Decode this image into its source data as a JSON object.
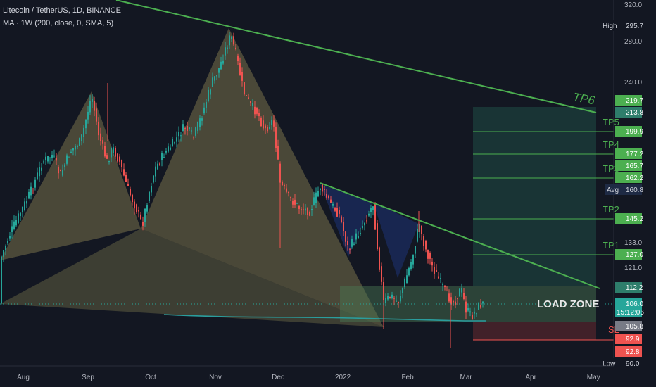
{
  "header": {
    "symbol_line": "Litecoin / TetherUS, 1D, BINANCE",
    "indicator_line": "MA · 1W (200, close, 0, SMA, 5)"
  },
  "colors": {
    "background": "#131722",
    "up": "#26a69a",
    "down": "#ef5350",
    "trendline": "#4caf50",
    "harmonic_fill": "#8d8654",
    "blue_pattern_fill": "#1e3a6e",
    "target_zone": "#1f4d46",
    "load_zone": "#3b5a46",
    "stop_zone": "#5a2a2e",
    "ma_line": "#2a9d9d"
  },
  "chart_data": {
    "type": "candlestick",
    "title": "Litecoin / TetherUS, 1D, BINANCE",
    "price_axis": {
      "ticks": [
        {
          "value": 320,
          "label": "320.0"
        },
        {
          "value": 280,
          "label": "280.0"
        },
        {
          "value": 240,
          "label": "240.0"
        },
        {
          "value": 133,
          "label": "133.0"
        },
        {
          "value": 121,
          "label": "121.0"
        }
      ]
    },
    "time_axis": {
      "labels": [
        {
          "label": "Aug",
          "date": "2021-08-01"
        },
        {
          "label": "Sep",
          "date": "2021-09-01"
        },
        {
          "label": "Oct",
          "date": "2021-10-01"
        },
        {
          "label": "Nov",
          "date": "2021-11-01"
        },
        {
          "label": "Dec",
          "date": "2021-12-01"
        },
        {
          "label": "2022",
          "date": "2022-01-01"
        },
        {
          "label": "Feb",
          "date": "2022-02-01"
        },
        {
          "label": "Mar",
          "date": "2022-03-01"
        },
        {
          "label": "Apr",
          "date": "2022-04-01"
        },
        {
          "label": "May",
          "date": "2022-05-01"
        }
      ]
    },
    "price_tags": [
      {
        "prefix": "High",
        "value": "295.7",
        "color": "#131722",
        "text": "#d1d4dc"
      },
      {
        "prefix": "",
        "value": "219.7",
        "color": "#4caf50",
        "text": "#ffffff"
      },
      {
        "prefix": "",
        "value": "213.8",
        "color": "#2e7d6b",
        "text": "#ffffff"
      },
      {
        "prefix": "",
        "value": "199.9",
        "color": "#4caf50",
        "text": "#ffffff"
      },
      {
        "prefix": "",
        "value": "177.2",
        "color": "#4caf50",
        "text": "#ffffff"
      },
      {
        "prefix": "",
        "value": "165.7",
        "color": "#4caf50",
        "text": "#ffffff"
      },
      {
        "prefix": "",
        "value": "162.2",
        "color": "#4caf50",
        "text": "#ffffff"
      },
      {
        "prefix": "Avg",
        "value": "160.8",
        "color": "#1e2a44",
        "text": "#d1d4dc"
      },
      {
        "prefix": "",
        "value": "145.2",
        "color": "#4caf50",
        "text": "#ffffff"
      },
      {
        "prefix": "",
        "value": "127.0",
        "color": "#4caf50",
        "text": "#ffffff"
      },
      {
        "prefix": "",
        "value": "112.2",
        "color": "#2e7d6b",
        "text": "#ffffff"
      },
      {
        "prefix": "",
        "value": "106.0",
        "sub": "15:12:06",
        "color": "#26a69a",
        "text": "#ffffff"
      },
      {
        "prefix": "",
        "value": "105.8",
        "color": "#787b86",
        "text": "#ffffff"
      },
      {
        "prefix": "",
        "value": "92.9",
        "color": "#ef5350",
        "text": "#ffffff"
      },
      {
        "prefix": "",
        "value": "92.8",
        "color": "#ef5350",
        "text": "#ffffff"
      },
      {
        "prefix": "Low",
        "value": "90.0",
        "color": "#131722",
        "text": "#d1d4dc"
      }
    ],
    "targets": [
      {
        "label": "TP6"
      },
      {
        "label": "TP5",
        "value": 199.9
      },
      {
        "label": "TP4",
        "value": 177.2
      },
      {
        "label": "TP3",
        "value": 162.2
      },
      {
        "label": "TP2",
        "value": 145.2
      },
      {
        "label": "TP1",
        "value": 127.0
      }
    ],
    "zones": {
      "load_zone_label": "LOAD ZONE",
      "stop_label": "SL"
    },
    "last_price": 106.0,
    "high": 295.7,
    "low": 90.0
  }
}
